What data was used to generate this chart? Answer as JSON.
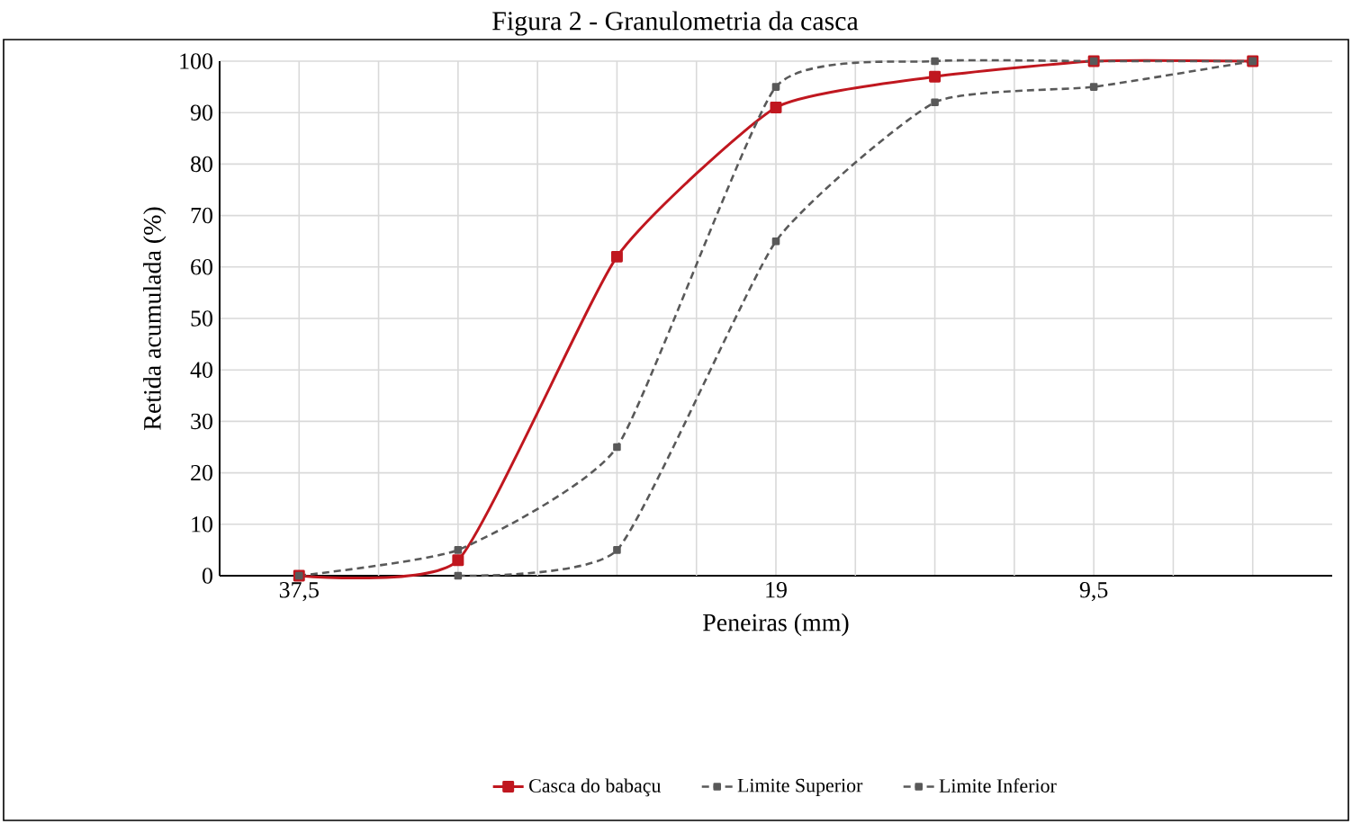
{
  "chart_data": {
    "type": "line",
    "title": "Figura 2 - Granulometria da casca",
    "xlabel": "Peneiras (mm)",
    "ylabel": "Retida acumulada (%)",
    "categories": [
      "37,5",
      null,
      null,
      "19",
      null,
      "9,5",
      null
    ],
    "series": [
      {
        "name": "Casca do babaçu",
        "color": "#c0171f",
        "values": [
          0,
          3,
          62,
          91,
          97,
          100,
          100
        ],
        "line_style": "solid"
      },
      {
        "name": "Limite Superior",
        "color": "#595959",
        "values": [
          0,
          5,
          25,
          95,
          100,
          100,
          100
        ],
        "line_style": "dashed"
      },
      {
        "name": "Limite Inferior",
        "color": "#595959",
        "values": [
          null,
          0,
          5,
          65,
          92,
          95,
          100
        ],
        "line_style": "dashed"
      }
    ],
    "ylim": [
      0,
      100
    ],
    "yticks": [
      0,
      10,
      20,
      30,
      40,
      50,
      60,
      70,
      80,
      90,
      100
    ],
    "grid": true,
    "legend": "bottom",
    "marker": "square"
  }
}
